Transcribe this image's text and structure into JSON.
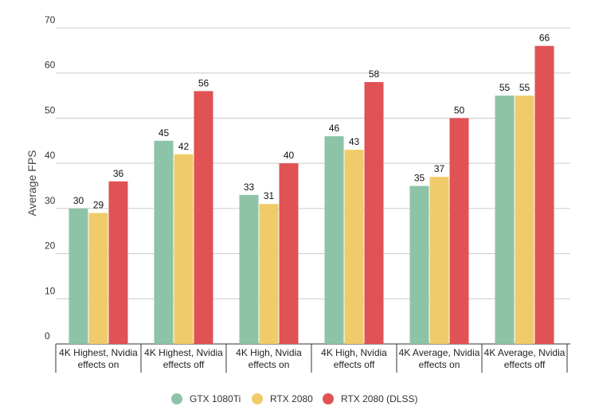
{
  "chart_data": {
    "type": "bar",
    "y_label": "Average FPS",
    "categories": [
      "4K Highest, Nvidia effects on",
      "4K Highest, Nvidia effects off",
      "4K High, Nvidia effects on",
      "4K High, Nvidia effects off",
      "4K Average, Nvidia effects on",
      "4K Average, Nvidia effects off"
    ],
    "series": [
      {
        "name": "GTX 1080Ti",
        "color": "#8dc3a7",
        "values": [
          30,
          45,
          33,
          46,
          35,
          55
        ]
      },
      {
        "name": "RTX 2080",
        "color": "#f0cb69",
        "values": [
          29,
          42,
          31,
          43,
          37,
          55
        ]
      },
      {
        "name": "RTX 2080 (DLSS)",
        "color": "#e05254",
        "values": [
          36,
          56,
          40,
          58,
          50,
          66
        ]
      }
    ],
    "ylim": [
      0,
      70
    ],
    "yticks": [
      0,
      10,
      20,
      30,
      40,
      50,
      60,
      70
    ],
    "grid": true
  }
}
